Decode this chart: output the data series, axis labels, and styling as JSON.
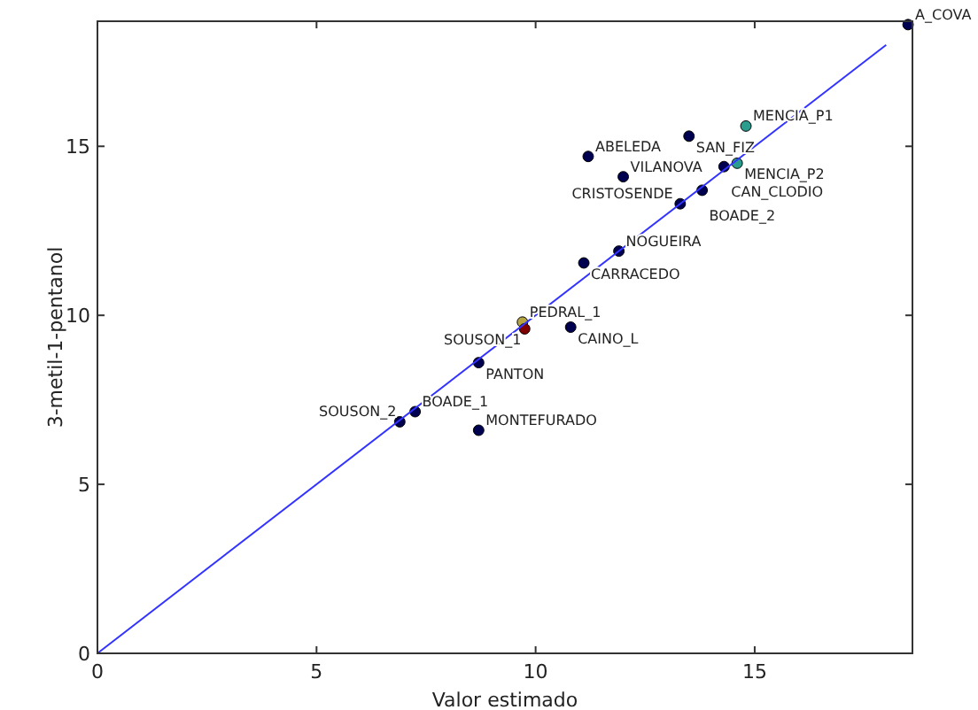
{
  "chart_data": {
    "type": "scatter",
    "xlabel": "Valor estimado",
    "ylabel": "3-metil-1-pentanol",
    "xlim": [
      0,
      18.6
    ],
    "ylim": [
      0,
      18.7
    ],
    "xticks": [
      0,
      5,
      10,
      15
    ],
    "yticks": [
      0,
      5,
      10,
      15
    ],
    "grid": false,
    "marker": "circle",
    "series": [
      {
        "x": [
          18.5,
          14.8,
          13.5,
          11.2,
          14.6,
          14.3,
          12.0,
          13.8,
          13.3,
          11.9,
          11.1,
          9.7,
          9.75,
          10.8,
          8.7,
          7.25,
          6.9,
          8.7
        ],
        "values": [
          18.6,
          15.6,
          15.3,
          14.7,
          14.5,
          14.4,
          14.1,
          13.7,
          13.3,
          11.9,
          11.55,
          9.8,
          9.6,
          9.65,
          8.6,
          7.15,
          6.85,
          6.6
        ],
        "colors": [
          "#000050",
          "#2a9d8f",
          "#000050",
          "#000050",
          "#2a9d8f",
          "#000050",
          "#000050",
          "#000050",
          "#000050",
          "#000050",
          "#000050",
          "#b5a642",
          "#800000",
          "#000050",
          "#000050",
          "#000050",
          "#000050",
          "#000050"
        ]
      },
      {
        "type": "line",
        "x": [
          0,
          18
        ],
        "values": [
          0,
          18
        ],
        "color": "#3333ff",
        "marker": "none"
      }
    ],
    "annotations": [
      {
        "text": "A_COVA",
        "x": 18.5,
        "y": 18.6
      },
      {
        "text": "MENCIA_P1",
        "x": 14.8,
        "y": 15.6
      },
      {
        "text": "SAN_FIZ",
        "x": 13.5,
        "y": 15.3
      },
      {
        "text": "ABELEDA",
        "x": 11.2,
        "y": 14.7
      },
      {
        "text": "MENCIA_P2",
        "x": 14.6,
        "y": 14.5
      },
      {
        "text": "CAN_CLODIO",
        "x": 14.3,
        "y": 14.4
      },
      {
        "text": "VILANOVA",
        "x": 12.0,
        "y": 14.1
      },
      {
        "text": "BOADE_2",
        "x": 13.8,
        "y": 13.7
      },
      {
        "text": "CRISTOSENDE",
        "x": 13.3,
        "y": 13.3
      },
      {
        "text": "NOGUEIRA",
        "x": 11.9,
        "y": 11.9
      },
      {
        "text": "CARRACEDO",
        "x": 11.1,
        "y": 11.55
      },
      {
        "text": "PEDRAL_1",
        "x": 9.7,
        "y": 9.8
      },
      {
        "text": "SOUSON_1",
        "x": 9.75,
        "y": 9.6
      },
      {
        "text": "CAINO_L",
        "x": 10.8,
        "y": 9.65
      },
      {
        "text": "PANTON",
        "x": 8.7,
        "y": 8.6
      },
      {
        "text": "BOADE_1",
        "x": 7.25,
        "y": 7.15
      },
      {
        "text": "SOUSON_2",
        "x": 6.9,
        "y": 6.85
      },
      {
        "text": "MONTEFURADO",
        "x": 8.7,
        "y": 6.6
      }
    ]
  }
}
